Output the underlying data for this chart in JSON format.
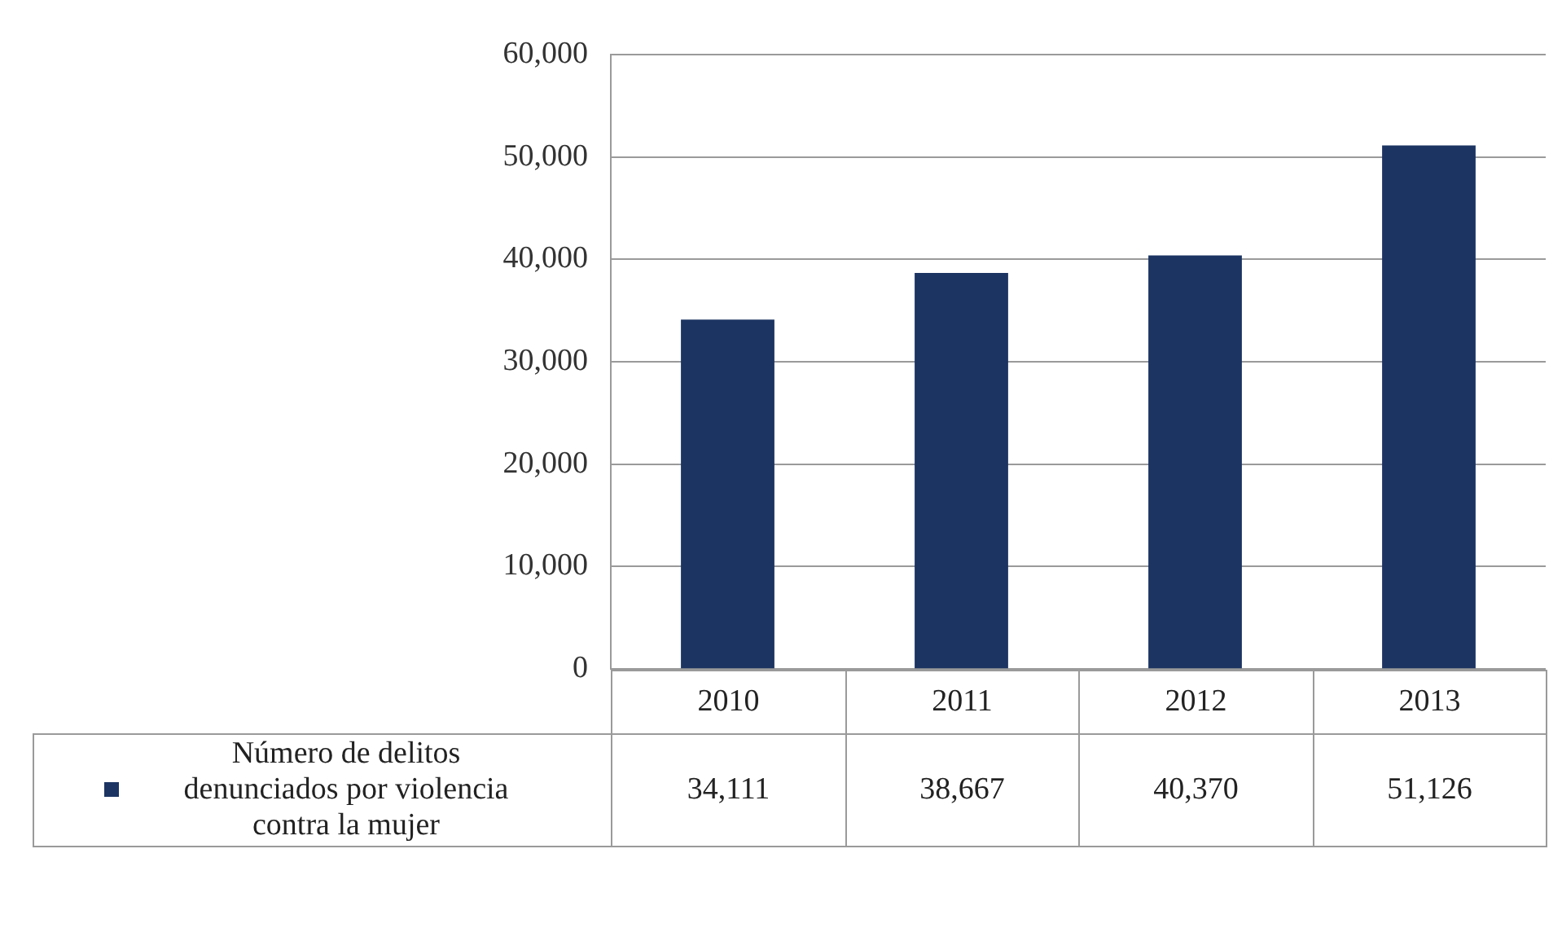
{
  "chart_data": {
    "type": "bar",
    "categories": [
      "2010",
      "2011",
      "2012",
      "2013"
    ],
    "series": [
      {
        "name": "Número de delitos denunciados por violencia contra la mujer",
        "color": "#1c3462",
        "values": [
          34111,
          38667,
          40370,
          51126
        ],
        "value_labels": [
          "34,111",
          "38,667",
          "40,370",
          "51,126"
        ]
      }
    ],
    "ylim": [
      0,
      60000
    ],
    "yticks": [
      {
        "value": 0,
        "label": "0"
      },
      {
        "value": 10000,
        "label": "10,000"
      },
      {
        "value": 20000,
        "label": "20,000"
      },
      {
        "value": 30000,
        "label": "30,000"
      },
      {
        "value": 40000,
        "label": "40,000"
      },
      {
        "value": 50000,
        "label": "50,000"
      },
      {
        "value": 60000,
        "label": "60,000"
      }
    ],
    "grid": "y",
    "legend": "bottom"
  }
}
